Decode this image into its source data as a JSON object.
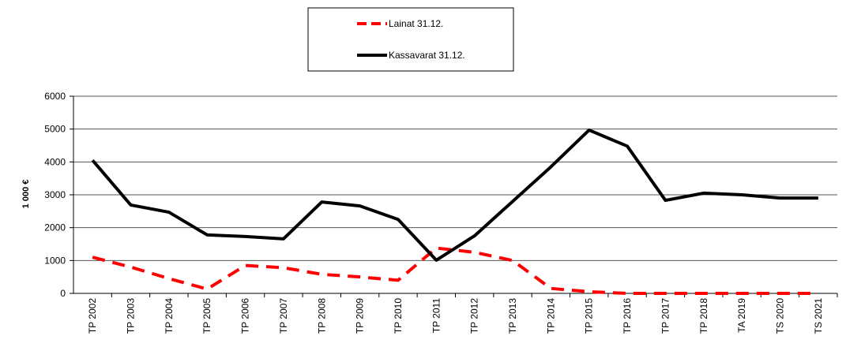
{
  "chart_data": {
    "type": "line",
    "y_label": "1 000 €",
    "categories": [
      "TP 2002",
      "TP 2003",
      "TP 2004",
      "TP 2005",
      "TP 2006",
      "TP 2007",
      "TP 2008",
      "TP 2009",
      "TP 2010",
      "TP 2011",
      "TP 2012",
      "TP 2013",
      "TP 2014",
      "TP 2015",
      "TP 2016",
      "TP 2017",
      "TP 2018",
      "TA 2019",
      "TS 2020",
      "TS 2021"
    ],
    "series": [
      {
        "name": "Lainat 31.12.",
        "color": "#ff0000",
        "dashed": true,
        "values": [
          1100,
          800,
          450,
          130,
          850,
          780,
          580,
          500,
          400,
          1380,
          1250,
          1000,
          150,
          50,
          0,
          0,
          0,
          0,
          0,
          0
        ]
      },
      {
        "name": "Kassavarat 31.12.",
        "color": "#000000",
        "dashed": false,
        "values": [
          4050,
          2690,
          2470,
          1780,
          1730,
          1660,
          2780,
          2660,
          2250,
          1010,
          1750,
          2800,
          3850,
          4970,
          4480,
          2830,
          3050,
          3000,
          2900,
          2900
        ]
      }
    ],
    "ylim": [
      0,
      6000
    ],
    "yticks": [
      0,
      1000,
      2000,
      3000,
      4000,
      5000,
      6000
    ],
    "grid": true
  }
}
